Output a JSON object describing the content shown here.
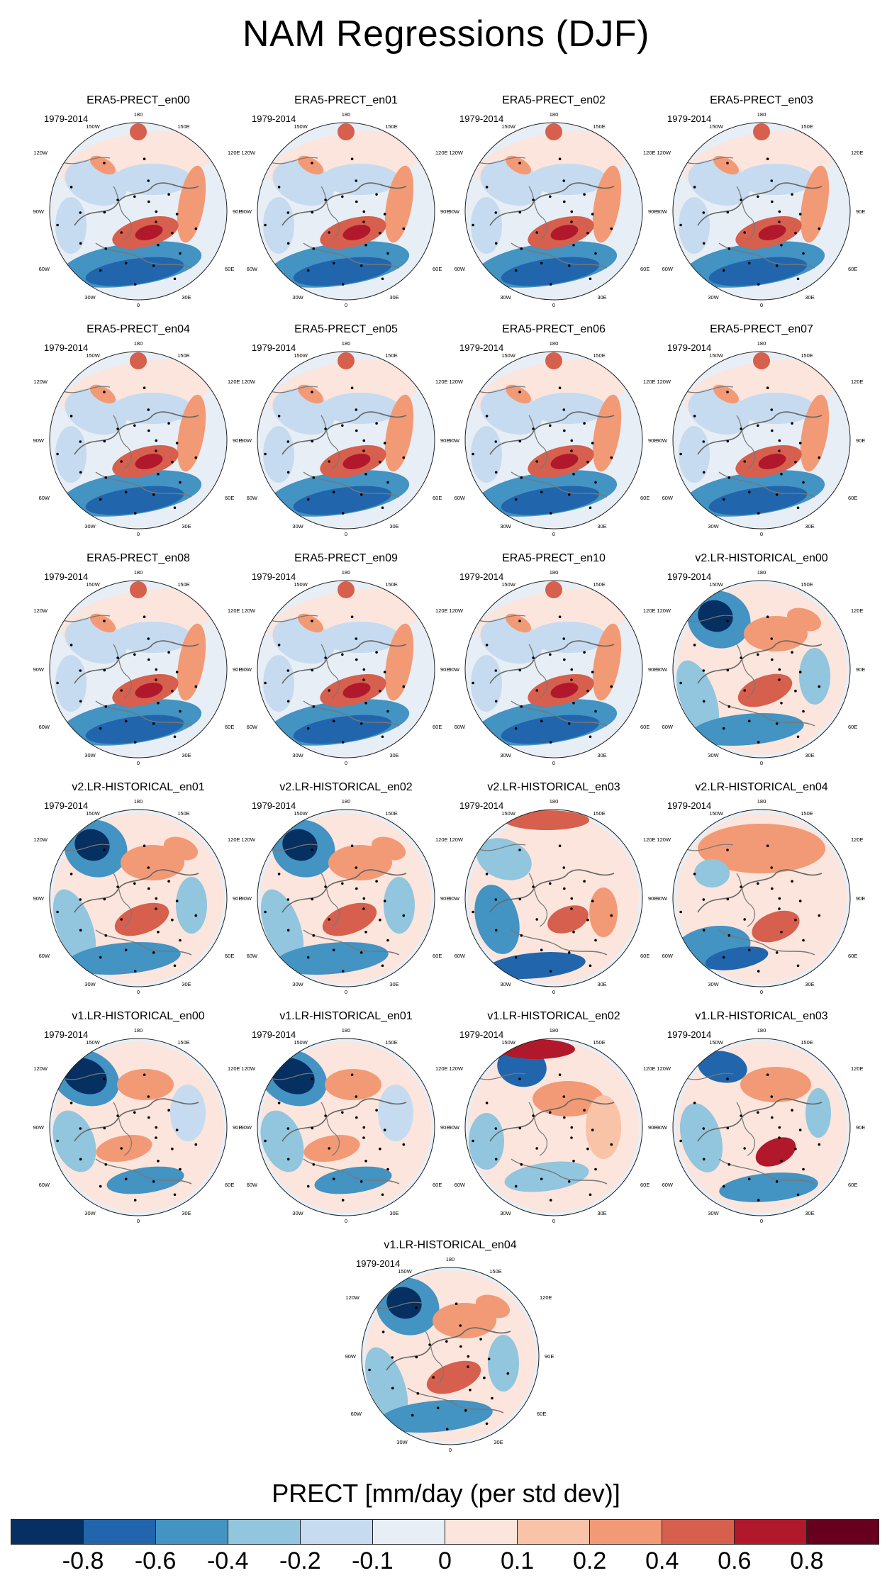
{
  "figure": {
    "title": "NAM Regressions (DJF)",
    "period": "1979-2014"
  },
  "map_labels": {
    "lon_180": "180",
    "lon_150W": "150W",
    "lon_150E": "150E",
    "lon_120W": "120W",
    "lon_120E": "120E",
    "lon_90W": "90W",
    "lon_90E": "90E",
    "lon_60W": "60W",
    "lon_60E": "60E",
    "lon_30W": "30W",
    "lon_30E": "30E",
    "lon_0": "0"
  },
  "panels": [
    {
      "title": "ERA5-PRECT_en00",
      "pattern": "era5"
    },
    {
      "title": "ERA5-PRECT_en01",
      "pattern": "era5"
    },
    {
      "title": "ERA5-PRECT_en02",
      "pattern": "era5"
    },
    {
      "title": "ERA5-PRECT_en03",
      "pattern": "era5"
    },
    {
      "title": "ERA5-PRECT_en04",
      "pattern": "era5"
    },
    {
      "title": "ERA5-PRECT_en05",
      "pattern": "era5"
    },
    {
      "title": "ERA5-PRECT_en06",
      "pattern": "era5"
    },
    {
      "title": "ERA5-PRECT_en07",
      "pattern": "era5"
    },
    {
      "title": "ERA5-PRECT_en08",
      "pattern": "era5"
    },
    {
      "title": "ERA5-PRECT_en09",
      "pattern": "era5"
    },
    {
      "title": "ERA5-PRECT_en10",
      "pattern": "era5"
    },
    {
      "title": "v2.LR-HISTORICAL_en00",
      "pattern": "v2"
    },
    {
      "title": "v2.LR-HISTORICAL_en01",
      "pattern": "v2"
    },
    {
      "title": "v2.LR-HISTORICAL_en02",
      "pattern": "v2"
    },
    {
      "title": "v2.LR-HISTORICAL_en03",
      "pattern": "v2b"
    },
    {
      "title": "v2.LR-HISTORICAL_en04",
      "pattern": "v2c"
    },
    {
      "title": "v1.LR-HISTORICAL_en00",
      "pattern": "v1"
    },
    {
      "title": "v1.LR-HISTORICAL_en01",
      "pattern": "v1"
    },
    {
      "title": "v1.LR-HISTORICAL_en02",
      "pattern": "v1b"
    },
    {
      "title": "v1.LR-HISTORICAL_en03",
      "pattern": "v1c"
    },
    {
      "title": "v1.LR-HISTORICAL_en04",
      "pattern": "v2"
    }
  ],
  "colorbar": {
    "title": "PRECT [mm/day (per std dev)]",
    "colors": [
      "#053061",
      "#2166ac",
      "#4393c3",
      "#92c5de",
      "#c6dbef",
      "#e7eef5",
      "#fbe5dc",
      "#f9c3a8",
      "#f29a76",
      "#d6604d",
      "#b2182b",
      "#67001f"
    ],
    "labels": [
      "-0.8",
      "-0.6",
      "-0.4",
      "-0.2",
      "-0.1",
      "0",
      "0.1",
      "0.2",
      "0.4",
      "0.6",
      "0.8"
    ]
  }
}
